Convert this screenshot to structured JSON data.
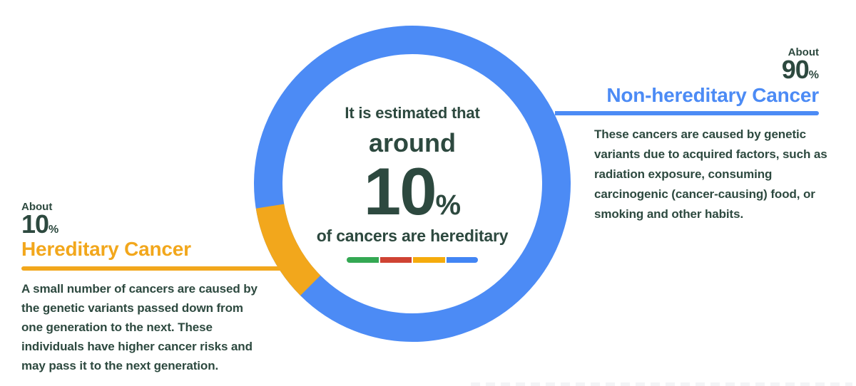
{
  "palette": {
    "blue": "#4c8bf5",
    "yellow": "#f2a71c",
    "dark": "#2d493f"
  },
  "chart_data": {
    "type": "pie",
    "donut": true,
    "title": "It is estimated that around 10% of cancers are hereditary",
    "categories": [
      "Hereditary Cancer",
      "Non-hereditary Cancer"
    ],
    "values": [
      10,
      90
    ],
    "colors": [
      "#f2a71c",
      "#4c8bf5"
    ],
    "rotation_deg": 225,
    "ring_thickness_px": 40,
    "legend_position": "center-below-text"
  },
  "center": {
    "line1": "It is estimated that",
    "line2": "around",
    "value": "10",
    "percent_sign": "%",
    "line3": "of cancers are hereditary",
    "bar_colors": [
      "#34a853",
      "#cf4333",
      "#f5ab0c",
      "#4285f4"
    ]
  },
  "hereditary": {
    "about": "About",
    "value": "10",
    "percent_sign": "%",
    "title": "Hereditary Cancer",
    "description": "A small number of cancers are caused by the genetic variants passed down from one generation to the next. These individuals have higher cancer risks and may pass it to the next generation."
  },
  "non_hereditary": {
    "about": "About",
    "value": "90",
    "percent_sign": "%",
    "title": "Non-hereditary Cancer",
    "description": "These cancers are caused by genetic variants due to acquired factors, such as radiation exposure, consuming carcinogenic (cancer-causing) food, or smoking and other habits."
  }
}
